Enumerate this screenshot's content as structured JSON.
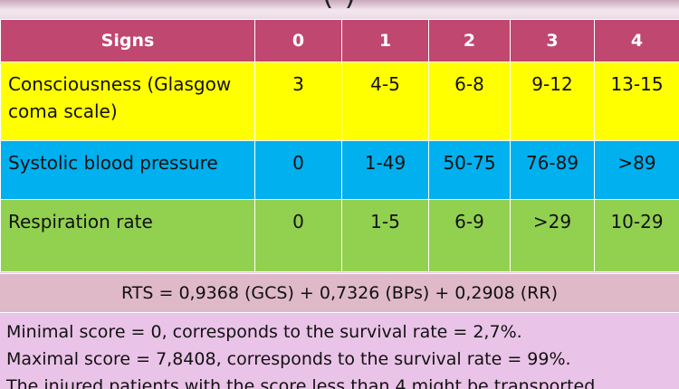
{
  "title_fragment": "(                                        )",
  "table": {
    "headers": [
      "Signs",
      "0",
      "1",
      "2",
      "3",
      "4"
    ],
    "rows": [
      {
        "sign": "Consciousness (Glasgow coma scale)",
        "values": [
          "3",
          "4-5",
          "6-8",
          "9-12",
          "13-15"
        ]
      },
      {
        "sign": "Systolic blood pressure",
        "values": [
          "0",
          "1-49",
          "50-75",
          "76-89",
          ">89"
        ]
      },
      {
        "sign": "Respiration rate",
        "values": [
          "0",
          "1-5",
          "6-9",
          ">29",
          "10-29"
        ]
      }
    ]
  },
  "formula": "RTS = 0,9368 (GCS) + 0,7326 (BPs) + 0,2908 (RR)",
  "notes": [
    "Minimal score = 0, corresponds to the survival rate = 2,7%.",
    "Maximal score = 7,8408, corresponds to the survival rate = 99%.",
    "The injured patients with the score less than 4 might be transported"
  ],
  "colors": {
    "header": "#c0476f",
    "consciousness_row": "#ffff00",
    "blood_pressure_row": "#00b0ef",
    "respiration_row": "#92d050",
    "formula_bg": "#dfb9c7",
    "notes_bg": "#eac3e8"
  }
}
